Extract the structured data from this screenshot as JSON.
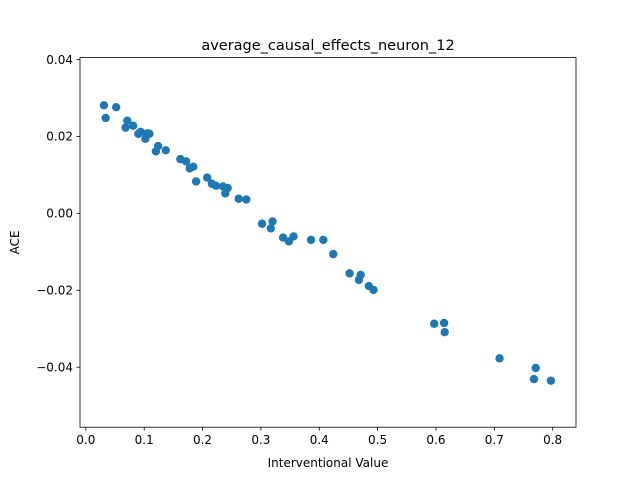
{
  "chart_data": {
    "type": "scatter",
    "title": "average_causal_effects_neuron_12",
    "xlabel": "Interventional Value",
    "ylabel": "ACE",
    "xlim": [
      -0.01,
      0.84
    ],
    "ylim": [
      -0.0556,
      0.0405
    ],
    "x_ticks": [
      0.0,
      0.1,
      0.2,
      0.3,
      0.4,
      0.5,
      0.6,
      0.7,
      0.8
    ],
    "x_tick_labels": [
      "0.0",
      "0.1",
      "0.2",
      "0.3",
      "0.4",
      "0.5",
      "0.6",
      "0.7",
      "0.8"
    ],
    "y_ticks": [
      -0.04,
      -0.02,
      0.0,
      0.02,
      0.04
    ],
    "y_tick_labels": [
      "−0.04",
      "−0.02",
      "0.00",
      "0.02",
      "0.04"
    ],
    "grid": false,
    "marker_color": "#1f77b4",
    "points": [
      {
        "x": 0.031,
        "y": 0.0281
      },
      {
        "x": 0.034,
        "y": 0.0248
      },
      {
        "x": 0.052,
        "y": 0.0276
      },
      {
        "x": 0.068,
        "y": 0.0223
      },
      {
        "x": 0.071,
        "y": 0.0241
      },
      {
        "x": 0.081,
        "y": 0.0228
      },
      {
        "x": 0.09,
        "y": 0.0207
      },
      {
        "x": 0.094,
        "y": 0.0212
      },
      {
        "x": 0.102,
        "y": 0.0194
      },
      {
        "x": 0.105,
        "y": 0.0208
      },
      {
        "x": 0.109,
        "y": 0.0207
      },
      {
        "x": 0.12,
        "y": 0.0161
      },
      {
        "x": 0.124,
        "y": 0.0175
      },
      {
        "x": 0.137,
        "y": 0.0164
      },
      {
        "x": 0.162,
        "y": 0.0141
      },
      {
        "x": 0.172,
        "y": 0.0135
      },
      {
        "x": 0.178,
        "y": 0.0117
      },
      {
        "x": 0.184,
        "y": 0.0121
      },
      {
        "x": 0.189,
        "y": 0.0083
      },
      {
        "x": 0.208,
        "y": 0.0093
      },
      {
        "x": 0.216,
        "y": 0.0077
      },
      {
        "x": 0.223,
        "y": 0.0072
      },
      {
        "x": 0.235,
        "y": 0.007
      },
      {
        "x": 0.239,
        "y": 0.0052
      },
      {
        "x": 0.243,
        "y": 0.0066
      },
      {
        "x": 0.262,
        "y": 0.0038
      },
      {
        "x": 0.275,
        "y": 0.0036
      },
      {
        "x": 0.302,
        "y": -0.0027
      },
      {
        "x": 0.317,
        "y": -0.0039
      },
      {
        "x": 0.32,
        "y": -0.0021
      },
      {
        "x": 0.338,
        "y": -0.0063
      },
      {
        "x": 0.348,
        "y": -0.0073
      },
      {
        "x": 0.356,
        "y": -0.006
      },
      {
        "x": 0.386,
        "y": -0.0069
      },
      {
        "x": 0.407,
        "y": -0.0069
      },
      {
        "x": 0.424,
        "y": -0.0106
      },
      {
        "x": 0.452,
        "y": -0.0156
      },
      {
        "x": 0.468,
        "y": -0.0173
      },
      {
        "x": 0.471,
        "y": -0.016
      },
      {
        "x": 0.485,
        "y": -0.0189
      },
      {
        "x": 0.493,
        "y": -0.0199
      },
      {
        "x": 0.597,
        "y": -0.0287
      },
      {
        "x": 0.614,
        "y": -0.0285
      },
      {
        "x": 0.615,
        "y": -0.0309
      },
      {
        "x": 0.709,
        "y": -0.0377
      },
      {
        "x": 0.768,
        "y": -0.0431
      },
      {
        "x": 0.771,
        "y": -0.0402
      },
      {
        "x": 0.797,
        "y": -0.0435
      }
    ]
  }
}
